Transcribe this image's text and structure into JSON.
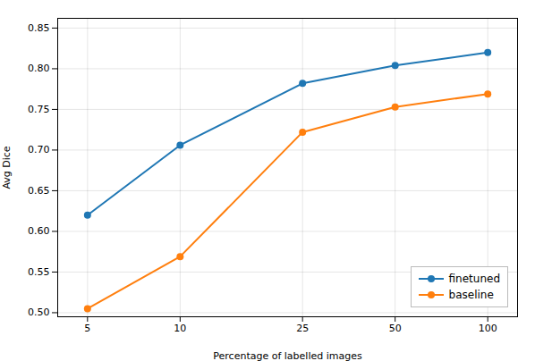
{
  "chart_data": {
    "type": "line",
    "x": [
      5,
      10,
      25,
      50,
      100
    ],
    "series": [
      {
        "name": "finetuned",
        "color": "#1f77b4",
        "values": [
          0.62,
          0.706,
          0.782,
          0.804,
          0.82
        ]
      },
      {
        "name": "baseline",
        "color": "#ff7f0e",
        "values": [
          0.505,
          0.569,
          0.722,
          0.753,
          0.769
        ]
      }
    ],
    "xlabel": "Percentage of labelled images",
    "ylabel": "Avg Dice",
    "log": "x",
    "xlim": [
      4,
      125
    ],
    "xticks": [
      5,
      10,
      25,
      50,
      100
    ],
    "ylim": [
      0.495,
      0.862
    ],
    "yticks": [
      {
        "value": 0.5,
        "label": "0.50"
      },
      0.55,
      {
        "value": 0.6,
        "label": "0.60"
      },
      0.65,
      {
        "value": 0.7,
        "label": "0.70"
      },
      0.75,
      {
        "value": 0.8,
        "label": "0.80"
      },
      0.85
    ],
    "grid": true,
    "legend": "lower right",
    "marker": "circle"
  }
}
